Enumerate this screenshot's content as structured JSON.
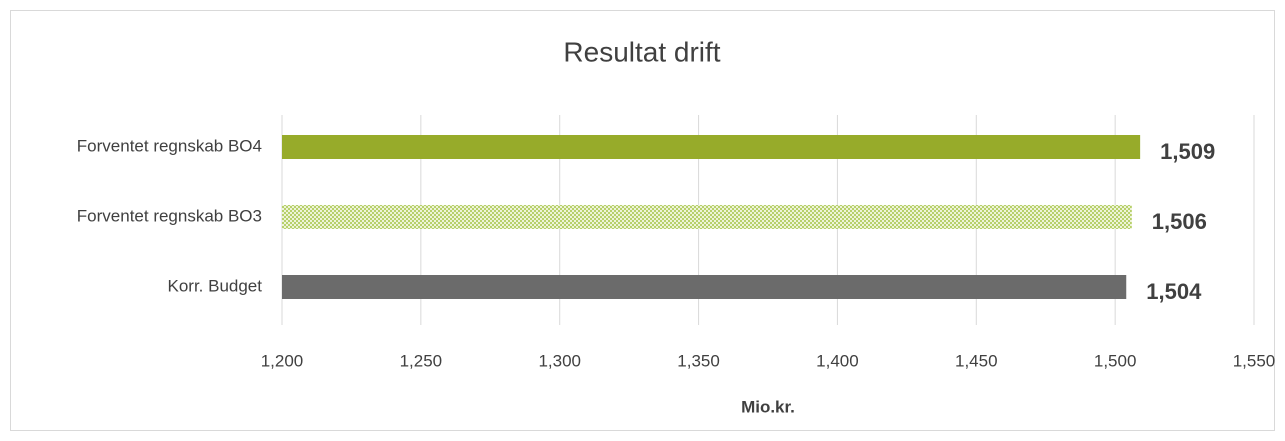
{
  "chart_data": {
    "type": "hbar",
    "title": "Resultat drift",
    "x_label": "Mio.kr.",
    "categories": [
      "Forventet regnskab BO4",
      "Forventet regnskab BO3",
      "Korr. Budget"
    ],
    "values": [
      1509,
      1506,
      1504
    ],
    "value_labels": [
      "1,509",
      "1,506",
      "1,504"
    ],
    "colors": [
      "#97ab2a",
      "#a6c548",
      "#6b6b6b"
    ],
    "patterns": [
      "solid",
      "dotted",
      "solid"
    ],
    "xlim": [
      1200,
      1550
    ],
    "xticks": [
      {
        "value": 1200,
        "label": "1,200"
      },
      {
        "value": 1250,
        "label": "1,250"
      },
      {
        "value": 1300,
        "label": "1,300"
      },
      {
        "value": 1350,
        "label": "1,350"
      },
      {
        "value": 1400,
        "label": "1,400"
      },
      {
        "value": 1450,
        "label": "1,450"
      },
      {
        "value": 1500,
        "label": "1,500"
      },
      {
        "value": 1550,
        "label": "1,550"
      }
    ],
    "grid": true
  }
}
